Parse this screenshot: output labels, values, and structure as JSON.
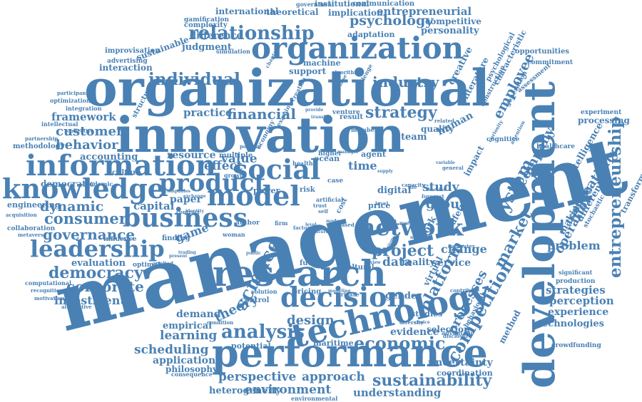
{
  "title": "",
  "color": "#4a81b4",
  "words": [
    "management",
    "organizational",
    "innovation",
    "development",
    "performance",
    "research",
    "technology",
    "organization",
    "information",
    "knowledge",
    "social",
    "business",
    "decision",
    "leadership",
    "network",
    "product",
    "model",
    "entrepreneurship",
    "competition",
    "system",
    "platform",
    "economic",
    "analysis",
    "consumer",
    "individual",
    "relationship",
    "strategy",
    "science",
    "democracy",
    "financial",
    "industry",
    "employee",
    "market",
    "processes",
    "project",
    "creativity",
    "sustainability",
    "operation",
    "corporate",
    "governance",
    "psychology",
    "customer",
    "behavior",
    "dynamic",
    "framework",
    "company",
    "group",
    "study",
    "learning",
    "scheduling",
    "design",
    "theory",
    "entrepreneurial",
    "environment",
    "perspective",
    "value",
    "effect",
    "investment",
    "change",
    "problem",
    "data",
    "approach",
    "practice",
    "evaluation",
    "application",
    "capital",
    "paper",
    "resource",
    "game",
    "demand",
    "understanding",
    "perception",
    "experience",
    "strategies",
    "technologies",
    "time",
    "service",
    "uncertainty",
    "reality",
    "gender",
    "evidence",
    "selection",
    "digital",
    "quality",
    "team",
    "support",
    "machine",
    "coordination",
    "philosophy",
    "heterogeneity",
    "potential",
    "empirical",
    "accounting",
    "democratic",
    "engineering",
    "implication",
    "institutional",
    "international",
    "theoretical",
    "communication",
    "competitive",
    "personality",
    "adaptation",
    "complexity",
    "difference",
    "judgment",
    "sustainable",
    "simulation",
    "improvisation",
    "advertising",
    "interaction",
    "gamification",
    "government",
    "crowdfunding",
    "healthcare",
    "production",
    "significant",
    "commitment",
    "processing",
    "experiment",
    "intelligence",
    "transformation",
    "training",
    "making",
    "different",
    "stochastic",
    "cognitive",
    "curiosity",
    "generation",
    "assessment",
    "characteristic",
    "psychological",
    "opportunities",
    "literature",
    "creative",
    "construction",
    "human",
    "virtual",
    "work",
    "safety",
    "method",
    "behavioral",
    "advantage",
    "maritime",
    "pricing",
    "studies",
    "private",
    "future",
    "cultural",
    "price",
    "power",
    "risk",
    "case",
    "ocean",
    "agent",
    "manager",
    "higher",
    "health",
    "economy",
    "multiple",
    "growth",
    "culture",
    "academic",
    "collaboration",
    "metaverse",
    "influence",
    "finding",
    "applied",
    "optimal",
    "computational",
    "recognition",
    "motivation",
    "alternative",
    "consequence",
    "condition",
    "environmental",
    "woman",
    "contract",
    "companies",
    "exchange",
    "identity",
    "participant",
    "optimization",
    "integration",
    "intellectual",
    "collective",
    "partnership",
    "methodology",
    "acquisition",
    "general",
    "supply",
    "life",
    "impact",
    "positive",
    "structure",
    "chapter",
    "creation",
    "examine",
    "venture",
    "result",
    "provide",
    "transfer",
    "response",
    "challenge",
    "algorithm",
    "member",
    "related",
    "variable",
    "attention",
    "diversity",
    "contribute",
    "forecast",
    "disclosure",
    "theories",
    "mode",
    "factor",
    "level",
    "choice",
    "modeling",
    "artificial",
    "trust",
    "self",
    "cost",
    "firm",
    "public",
    "trading",
    "present",
    "computer",
    "capacity",
    "based",
    "level",
    "nature",
    "modern",
    "tourism",
    "review",
    "media",
    "mental",
    "author",
    "solution",
    "control",
    "person"
  ]
}
